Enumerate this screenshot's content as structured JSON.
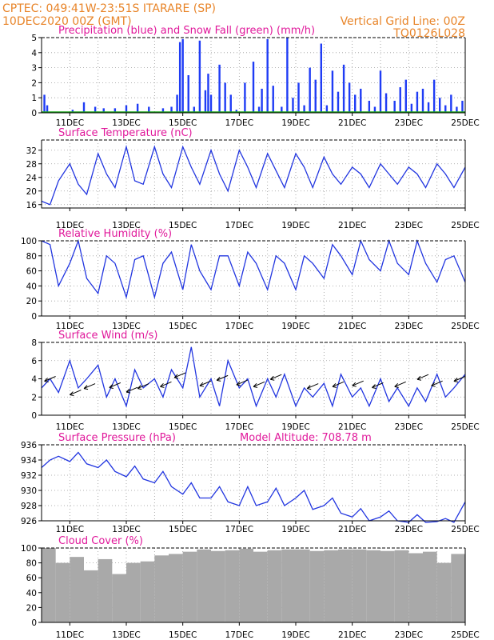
{
  "header": {
    "line1": "CPTEC:   049:41W-23:51S   ITARARE (SP)",
    "line2_left": "10DEC2020 00Z (GMT)",
    "line2_right": "Vertical Grid Line: 00Z",
    "code": "TQ0126L028"
  },
  "colors": {
    "precip": "#1f3cf5",
    "snow": "#19a619",
    "line": "#2236e0",
    "cloud": "#a9a9a9",
    "title": "#e0199b",
    "header": "#e8852a"
  },
  "x_axis": {
    "start_day": 10,
    "end_day": 25,
    "labels": [
      "11DEC",
      "13DEC",
      "15DEC",
      "17DEC",
      "19DEC",
      "21DEC",
      "23DEC",
      "25DEC"
    ]
  },
  "chart_data": [
    {
      "type": "bar",
      "title": "Precipitation (blue) and Snow Fall (green) (mm/h)",
      "ylim": [
        0,
        5
      ],
      "yticks": [
        "0",
        "1",
        "2",
        "3",
        "4",
        "5"
      ],
      "series": [
        {
          "name": "Precipitation",
          "x": [
            10.1,
            10.2,
            11.1,
            11.5,
            11.9,
            12.2,
            12.6,
            13.0,
            13.4,
            13.8,
            14.3,
            14.6,
            14.8,
            14.9,
            15.0,
            15.2,
            15.4,
            15.6,
            15.8,
            15.9,
            16.0,
            16.3,
            16.5,
            16.7,
            16.9,
            17.2,
            17.5,
            17.7,
            17.8,
            18.0,
            18.2,
            18.5,
            18.7,
            18.9,
            19.1,
            19.3,
            19.5,
            19.7,
            19.9,
            20.1,
            20.3,
            20.5,
            20.7,
            20.9,
            21.1,
            21.3,
            21.6,
            21.8,
            22.0,
            22.2,
            22.5,
            22.7,
            22.9,
            23.1,
            23.3,
            23.5,
            23.7,
            23.9,
            24.1,
            24.3,
            24.5,
            24.7,
            24.9
          ],
          "values": [
            1.2,
            0.5,
            0.2,
            0.7,
            0.4,
            0.3,
            0.3,
            0.5,
            0.6,
            0.4,
            0.3,
            0.4,
            1.2,
            4.7,
            4.9,
            2.5,
            0.4,
            4.8,
            1.5,
            2.6,
            1.2,
            3.2,
            2.0,
            1.2,
            0.2,
            2.0,
            3.4,
            0.4,
            1.6,
            4.9,
            1.8,
            0.4,
            5.0,
            1.0,
            2.0,
            0.5,
            3.0,
            2.2,
            4.6,
            0.5,
            2.8,
            1.4,
            3.2,
            2.0,
            1.2,
            1.6,
            0.8,
            0.4,
            2.8,
            1.3,
            0.8,
            1.7,
            2.2,
            0.6,
            1.4,
            1.6,
            0.7,
            2.2,
            1.0,
            0.5,
            1.2,
            0.4,
            0.8
          ]
        }
      ]
    },
    {
      "type": "line",
      "title": "Surface Temperature (nC)",
      "ylim": [
        15,
        35
      ],
      "yticks": [
        "16",
        "20",
        "24",
        "28",
        "32"
      ],
      "series": [
        {
          "name": "Temperature",
          "x": [
            10,
            10.3,
            10.6,
            11,
            11.3,
            11.6,
            12,
            12.3,
            12.6,
            13,
            13.3,
            13.6,
            14,
            14.3,
            14.6,
            15,
            15.3,
            15.6,
            16,
            16.3,
            16.6,
            17,
            17.3,
            17.6,
            18,
            18.3,
            18.6,
            19,
            19.3,
            19.6,
            20,
            20.3,
            20.6,
            21,
            21.3,
            21.6,
            22,
            22.3,
            22.6,
            23,
            23.3,
            23.6,
            24,
            24.3,
            24.6,
            25
          ],
          "values": [
            17,
            16,
            23,
            28,
            22,
            19,
            31,
            25,
            21,
            33,
            23,
            22,
            33,
            25,
            21,
            33,
            27,
            22,
            32,
            25,
            20,
            32,
            27,
            21,
            31,
            26,
            21,
            31,
            27,
            21,
            30,
            25,
            22,
            27,
            25,
            21,
            28,
            25,
            22,
            27,
            25,
            21,
            28,
            25,
            21,
            27
          ]
        }
      ]
    },
    {
      "type": "line",
      "title": "Relative Humidity (%)",
      "ylim": [
        0,
        100
      ],
      "yticks": [
        "0",
        "20",
        "40",
        "60",
        "80",
        "100"
      ],
      "series": [
        {
          "name": "Relative Humidity",
          "x": [
            10,
            10.3,
            10.6,
            11,
            11.3,
            11.6,
            12,
            12.3,
            12.6,
            13,
            13.3,
            13.6,
            14,
            14.3,
            14.6,
            15,
            15.3,
            15.6,
            16,
            16.3,
            16.6,
            17,
            17.3,
            17.6,
            18,
            18.3,
            18.6,
            19,
            19.3,
            19.6,
            20,
            20.3,
            20.6,
            21,
            21.3,
            21.6,
            22,
            22.3,
            22.6,
            23,
            23.3,
            23.6,
            24,
            24.3,
            24.6,
            25
          ],
          "values": [
            100,
            95,
            40,
            70,
            100,
            50,
            30,
            80,
            70,
            25,
            75,
            80,
            25,
            70,
            85,
            35,
            95,
            60,
            35,
            80,
            80,
            40,
            85,
            70,
            35,
            80,
            70,
            35,
            80,
            70,
            50,
            95,
            80,
            55,
            100,
            75,
            60,
            100,
            70,
            55,
            100,
            70,
            45,
            75,
            80,
            45
          ]
        }
      ]
    },
    {
      "type": "line",
      "title": "Surface Wind (m/s)",
      "ylim": [
        0,
        8
      ],
      "yticks": [
        "0",
        "2",
        "4",
        "6",
        "8"
      ],
      "series": [
        {
          "name": "Wind Speed",
          "x": [
            10,
            10.3,
            10.6,
            11,
            11.3,
            11.6,
            12,
            12.3,
            12.6,
            13,
            13.3,
            13.6,
            14,
            14.3,
            14.6,
            15,
            15.3,
            15.6,
            16,
            16.3,
            16.6,
            17,
            17.3,
            17.6,
            18,
            18.3,
            18.6,
            19,
            19.3,
            19.6,
            20,
            20.3,
            20.6,
            21,
            21.3,
            21.6,
            22,
            22.3,
            22.6,
            23,
            23.3,
            23.6,
            24,
            24.3,
            24.6,
            25
          ],
          "values": [
            3,
            4,
            2.5,
            6,
            3,
            4,
            5.5,
            2,
            4,
            1,
            5,
            3,
            4,
            2,
            5,
            3,
            7.5,
            2,
            4,
            1,
            6,
            3,
            4,
            1,
            4,
            2,
            4.5,
            1,
            3,
            2,
            3.5,
            1,
            4.5,
            2,
            3,
            1,
            4,
            1.5,
            3,
            1,
            3,
            1.5,
            4.5,
            2,
            3,
            4.5
          ]
        }
      ],
      "arrows": [
        [
          10.3,
          4
        ],
        [
          11.2,
          2.5
        ],
        [
          11.7,
          3.2
        ],
        [
          12.6,
          3.3
        ],
        [
          13.2,
          2.8
        ],
        [
          13.6,
          3.2
        ],
        [
          14.4,
          3.4
        ],
        [
          14.9,
          4.4
        ],
        [
          15.8,
          3.5
        ],
        [
          16.4,
          4.1
        ],
        [
          17.1,
          3.6
        ],
        [
          17.7,
          3.4
        ],
        [
          18.3,
          4.2
        ],
        [
          19.6,
          3.2
        ],
        [
          20.5,
          3.4
        ],
        [
          21.2,
          3.5
        ],
        [
          21.9,
          3.3
        ],
        [
          22.7,
          3.4
        ],
        [
          23.5,
          4.2
        ],
        [
          24.0,
          3.5
        ],
        [
          24.8,
          4.0
        ]
      ]
    },
    {
      "type": "line",
      "title": "Surface Pressure (hPa)",
      "annotation": "Model Altitude: 708.78 m",
      "ylim": [
        926,
        936
      ],
      "yticks": [
        "926",
        "928",
        "930",
        "932",
        "934",
        "936"
      ],
      "series": [
        {
          "name": "Pressure",
          "x": [
            10,
            10.3,
            10.6,
            11,
            11.3,
            11.6,
            12,
            12.3,
            12.6,
            13,
            13.3,
            13.6,
            14,
            14.3,
            14.6,
            15,
            15.3,
            15.6,
            16,
            16.3,
            16.6,
            17,
            17.3,
            17.6,
            18,
            18.3,
            18.6,
            19,
            19.3,
            19.6,
            20,
            20.3,
            20.6,
            21,
            21.3,
            21.6,
            22,
            22.3,
            22.6,
            23,
            23.3,
            23.6,
            24,
            24.3,
            24.6,
            25
          ],
          "values": [
            933,
            934,
            934.5,
            933.8,
            935,
            933.5,
            933,
            934,
            932.5,
            931.8,
            933.2,
            931.5,
            931,
            932.5,
            930.5,
            929.5,
            931,
            929,
            929,
            930.5,
            928.5,
            928,
            930.5,
            928,
            928.5,
            930.3,
            928,
            929,
            930,
            927.5,
            928,
            929,
            927,
            926.5,
            927.6,
            926,
            926.5,
            927.3,
            926,
            925.8,
            926.8,
            925.8,
            925.9,
            926.3,
            925.8,
            928.5
          ]
        }
      ]
    },
    {
      "type": "bar",
      "title": "Cloud Cover (%)",
      "ylim": [
        0,
        100
      ],
      "yticks": [
        "0",
        "20",
        "40",
        "60",
        "80",
        "100"
      ],
      "series": [
        {
          "name": "Cloud Cover",
          "x": [
            10,
            10.5,
            11,
            11.5,
            12,
            12.5,
            13,
            13.5,
            14,
            14.5,
            15,
            15.5,
            16,
            16.5,
            17,
            17.5,
            18,
            18.5,
            19,
            19.5,
            20,
            20.5,
            21,
            21.5,
            22,
            22.5,
            23,
            23.5,
            24,
            24.5,
            25
          ],
          "values": [
            100,
            80,
            88,
            70,
            85,
            65,
            80,
            82,
            90,
            92,
            95,
            98,
            96,
            97,
            99,
            95,
            97,
            98,
            98,
            96,
            97,
            98,
            98,
            97,
            96,
            97,
            93,
            95,
            80,
            92,
            100
          ]
        }
      ]
    }
  ]
}
